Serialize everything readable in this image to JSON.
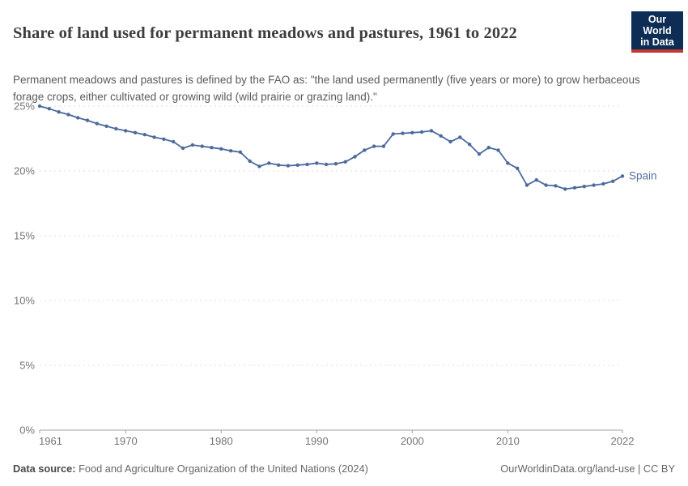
{
  "header": {
    "title": "Share of land used for permanent meadows and pastures, 1961 to 2022",
    "logo": {
      "line1": "Our World",
      "line2": "in Data"
    }
  },
  "subtitle": "Permanent meadows and pastures is defined by the FAO as: \"the land used permanently (five years or more) to grow herbaceous forage crops, either cultivated or growing wild (wild prairie or grazing land).\"",
  "footer": {
    "source_label": "Data source:",
    "source_text": " Food and Agriculture Organization of the United Nations (2024)",
    "license_text": "OurWorldinData.org/land-use | CC BY"
  },
  "colors": {
    "line": "#4C6A9C",
    "entity_label": "#56709e",
    "gridline": "#dcdcdc",
    "axis": "#a3a3a3",
    "tick_text": "#757575",
    "title_text": "#3d3d3d",
    "subtitle_text": "#5a5a5a",
    "footer_text": "#666666",
    "logo_background": "#0d2d55",
    "logo_stripe": "#c13a31"
  },
  "chart_data": {
    "type": "line",
    "title": "Share of land used for permanent meadows and pastures, 1961 to 2022",
    "xlabel": "",
    "ylabel": "",
    "ylim": [
      0,
      25
    ],
    "yticks": [
      0,
      5,
      10,
      15,
      20,
      25
    ],
    "ytick_suffix": "%",
    "xticks": [
      1961,
      1970,
      1980,
      1990,
      2000,
      2010,
      2022
    ],
    "grid": "horizontal-dashed",
    "legend_position": "end-of-line-label",
    "series": [
      {
        "name": "Spain",
        "x": [
          1961,
          1962,
          1963,
          1964,
          1965,
          1966,
          1967,
          1968,
          1969,
          1970,
          1971,
          1972,
          1973,
          1974,
          1975,
          1976,
          1977,
          1978,
          1979,
          1980,
          1981,
          1982,
          1983,
          1984,
          1985,
          1986,
          1987,
          1988,
          1989,
          1990,
          1991,
          1992,
          1993,
          1994,
          1995,
          1996,
          1997,
          1998,
          1999,
          2000,
          2001,
          2002,
          2003,
          2004,
          2005,
          2006,
          2007,
          2008,
          2009,
          2010,
          2011,
          2012,
          2013,
          2014,
          2015,
          2016,
          2017,
          2018,
          2019,
          2020,
          2021,
          2022
        ],
        "values": [
          25.0,
          24.8,
          24.55,
          24.35,
          24.1,
          23.9,
          23.65,
          23.45,
          23.25,
          23.1,
          22.95,
          22.8,
          22.6,
          22.45,
          22.25,
          21.75,
          22.0,
          21.9,
          21.8,
          21.7,
          21.55,
          21.45,
          20.75,
          20.35,
          20.6,
          20.45,
          20.4,
          20.45,
          20.5,
          20.6,
          20.5,
          20.55,
          20.7,
          21.1,
          21.6,
          21.9,
          21.9,
          22.85,
          22.9,
          22.95,
          23.0,
          23.1,
          22.7,
          22.25,
          22.6,
          22.05,
          21.3,
          21.8,
          21.6,
          20.6,
          20.2,
          18.9,
          19.3,
          18.9,
          18.85,
          18.6,
          18.7,
          18.8,
          18.9,
          19.0,
          19.2,
          19.6
        ]
      }
    ]
  }
}
